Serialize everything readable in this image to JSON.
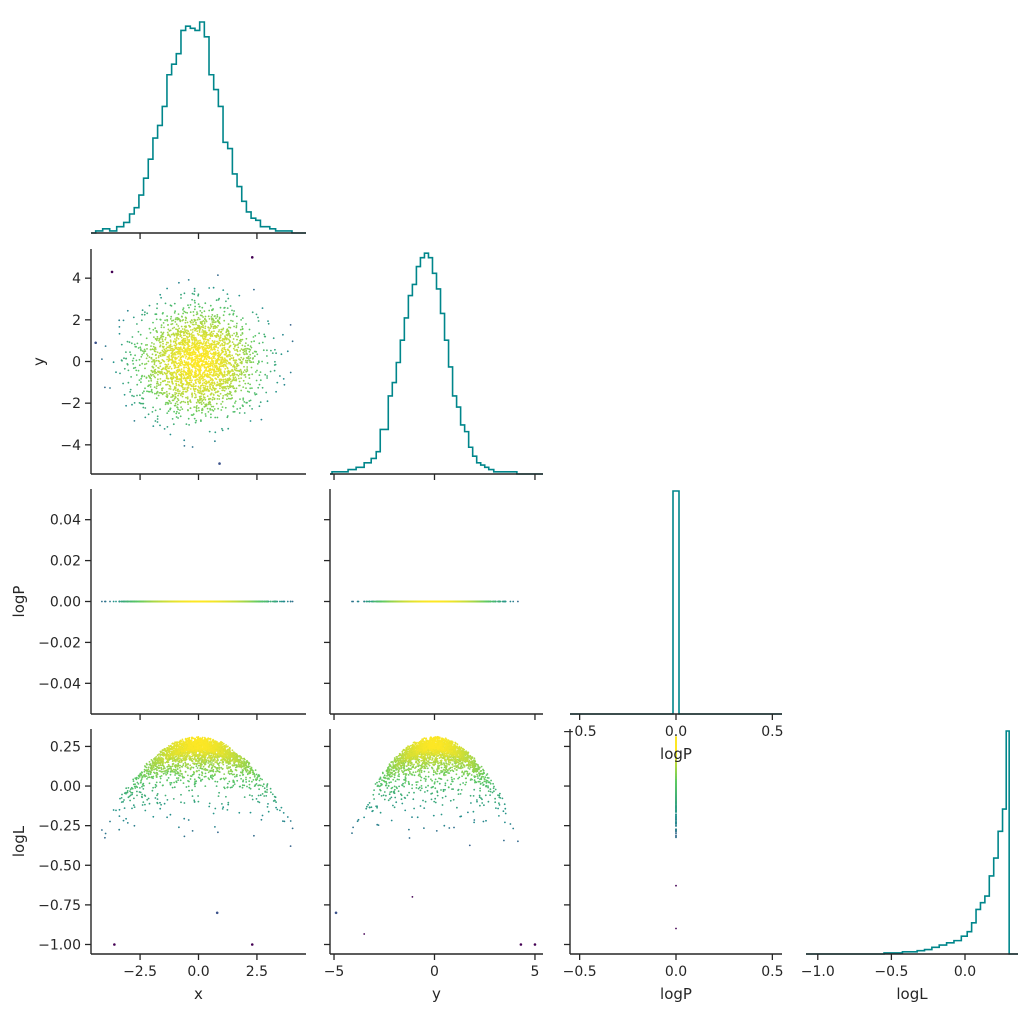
{
  "chart_data": {
    "type": "corner-plot",
    "variables": [
      "x",
      "y",
      "logP",
      "logL"
    ],
    "colors": {
      "histogram": "#00868b",
      "colormap": [
        "#440154",
        "#3b528b",
        "#21908d",
        "#5dc963",
        "#fde725"
      ],
      "axis": "#262626"
    },
    "histograms": [
      {
        "variable": "x",
        "xlim": [
          -4.6,
          4.6
        ],
        "ticks": [
          -2.5,
          0.0,
          2.5
        ],
        "tick_labels": [
          "−2.5",
          "0.0",
          "2.5"
        ],
        "xlabel": "x",
        "bin_centers": [
          -4.25,
          -3.95,
          -3.65,
          -3.35,
          -3.05,
          -2.85,
          -2.65,
          -2.45,
          -2.25,
          -2.05,
          -1.85,
          -1.65,
          -1.45,
          -1.25,
          -1.05,
          -0.85,
          -0.65,
          -0.45,
          -0.25,
          -0.05,
          0.15,
          0.35,
          0.55,
          0.75,
          0.95,
          1.15,
          1.35,
          1.55,
          1.75,
          1.95,
          2.15,
          2.35,
          2.55,
          2.75,
          2.95,
          3.15,
          3.45,
          3.8,
          4.2
        ],
        "relative_counts": [
          0.01,
          0.02,
          0.01,
          0.03,
          0.05,
          0.09,
          0.12,
          0.18,
          0.26,
          0.35,
          0.45,
          0.51,
          0.6,
          0.75,
          0.8,
          0.85,
          0.96,
          0.98,
          0.97,
          0.96,
          1.0,
          0.93,
          0.75,
          0.68,
          0.6,
          0.43,
          0.4,
          0.28,
          0.22,
          0.15,
          0.1,
          0.07,
          0.06,
          0.03,
          0.03,
          0.02,
          0.01,
          0.01,
          0.0
        ]
      },
      {
        "variable": "y",
        "xlim": [
          -5.2,
          5.4
        ],
        "ticks": [
          -5,
          0,
          5
        ],
        "tick_labels": [
          "−5",
          "0",
          "5"
        ],
        "xlabel": "y",
        "bin_centers": [
          -4.9,
          -4.5,
          -4.1,
          -3.7,
          -3.3,
          -3.0,
          -2.8,
          -2.6,
          -2.4,
          -2.2,
          -2.0,
          -1.8,
          -1.6,
          -1.4,
          -1.2,
          -1.0,
          -0.8,
          -0.6,
          -0.4,
          -0.2,
          0.0,
          0.2,
          0.4,
          0.6,
          0.8,
          1.0,
          1.2,
          1.4,
          1.6,
          1.8,
          2.0,
          2.2,
          2.4,
          2.6,
          2.8,
          3.1,
          3.5,
          3.9,
          4.3,
          4.8
        ],
        "relative_counts": [
          0.01,
          0.01,
          0.02,
          0.03,
          0.05,
          0.07,
          0.1,
          0.2,
          0.2,
          0.35,
          0.41,
          0.5,
          0.6,
          0.7,
          0.8,
          0.85,
          0.93,
          0.97,
          0.99,
          0.97,
          0.9,
          0.83,
          0.72,
          0.6,
          0.48,
          0.35,
          0.3,
          0.22,
          0.19,
          0.12,
          0.08,
          0.05,
          0.04,
          0.03,
          0.02,
          0.01,
          0.01,
          0.01,
          0.0,
          0.0
        ]
      },
      {
        "variable": "logP",
        "xlim": [
          -0.55,
          0.55
        ],
        "ticks": [
          -0.5,
          0.0,
          0.5
        ],
        "tick_labels": [
          "−0.5",
          "0.0",
          "0.5"
        ],
        "xlabel": "logP",
        "spike_at": 0.0,
        "relative_count": 1.0
      },
      {
        "variable": "logL",
        "xlim": [
          -1.08,
          0.36
        ],
        "ticks": [
          -1.0,
          -0.5,
          0.0
        ],
        "tick_labels": [
          "−1.0",
          "−0.5",
          "0.0"
        ],
        "xlabel": "logL",
        "bin_centers": [
          -1.0,
          -0.9,
          -0.8,
          -0.7,
          -0.6,
          -0.5,
          -0.45,
          -0.4,
          -0.35,
          -0.3,
          -0.25,
          -0.2,
          -0.15,
          -0.1,
          -0.05,
          0.0,
          0.03,
          0.06,
          0.09,
          0.12,
          0.15,
          0.18,
          0.21,
          0.24,
          0.27,
          0.29
        ],
        "relative_counts": [
          0.0,
          0.0,
          0.0,
          0.0,
          0.0,
          0.005,
          0.005,
          0.01,
          0.01,
          0.015,
          0.02,
          0.03,
          0.04,
          0.05,
          0.06,
          0.08,
          0.1,
          0.14,
          0.2,
          0.23,
          0.26,
          0.35,
          0.43,
          0.55,
          0.65,
          1.0
        ]
      }
    ],
    "scatter_panels": [
      {
        "x_variable": "x",
        "y_variable": "y",
        "xlim": [
          -4.6,
          4.6
        ],
        "ylim": [
          -5.4,
          5.4
        ],
        "y_ticks": [
          4,
          2,
          0,
          -2,
          -4
        ],
        "y_tick_labels": [
          "4",
          "2",
          "0",
          "−2",
          "−4"
        ],
        "ylabel": "y",
        "relation": "independent standard normal cloud, centered at (0, 0), color = logL",
        "outliers": [
          {
            "x": -3.7,
            "y": 4.3,
            "color": "#440154"
          },
          {
            "x": 2.3,
            "y": 5.0,
            "color": "#440154"
          },
          {
            "x": 0.9,
            "y": -4.9,
            "color": "#3b528b"
          },
          {
            "x": -4.4,
            "y": 0.9,
            "color": "#3b528b"
          }
        ]
      },
      {
        "x_variable": "x",
        "y_variable": "logP",
        "xlim": [
          -4.6,
          4.6
        ],
        "ylim": [
          -0.055,
          0.055
        ],
        "y_ticks": [
          0.04,
          0.02,
          0.0,
          -0.02,
          -0.04
        ],
        "y_tick_labels": [
          "0.04",
          "0.02",
          "0.00",
          "−0.02",
          "−0.04"
        ],
        "ylabel": "logP",
        "relation": "all points at logP = 0"
      },
      {
        "x_variable": "y",
        "y_variable": "logP",
        "xlim": [
          -5.2,
          5.4
        ],
        "ylim": [
          -0.055,
          0.055
        ],
        "relation": "all points at logP = 0"
      },
      {
        "x_variable": "x",
        "y_variable": "logL",
        "xlim": [
          -4.6,
          4.6
        ],
        "ylim": [
          -1.06,
          0.36
        ],
        "y_ticks": [
          0.25,
          0.0,
          -0.25,
          -0.5,
          -0.75,
          -1.0
        ],
        "y_tick_labels": [
          "0.25",
          "0.00",
          "−0.25",
          "−0.50",
          "−0.75",
          "−1.00"
        ],
        "ylabel": "logL",
        "relation": "logL ≤ 0.3 − x²/30, dense near the upper parabola",
        "outliers": [
          {
            "x": -3.6,
            "y": -1.0,
            "color": "#440154"
          },
          {
            "x": 2.3,
            "y": -1.0,
            "color": "#440154"
          },
          {
            "x": 0.8,
            "y": -0.8,
            "color": "#3b528b"
          }
        ]
      },
      {
        "x_variable": "y",
        "y_variable": "logL",
        "xlim": [
          -5.2,
          5.4
        ],
        "ylim": [
          -1.06,
          0.36
        ],
        "relation": "logL ≤ 0.3 − y²/30, dense near the upper parabola",
        "outliers": [
          {
            "x": 4.3,
            "y": -1.0,
            "color": "#440154"
          },
          {
            "x": 5.0,
            "y": -1.0,
            "color": "#440154"
          },
          {
            "x": -4.9,
            "y": -0.8,
            "color": "#3b528b"
          }
        ]
      },
      {
        "x_variable": "logP",
        "y_variable": "logL",
        "xlim": [
          -0.55,
          0.55
        ],
        "ylim": [
          -1.06,
          0.36
        ],
        "relation": "vertical line at logP = 0 spanning logL from −1.0 to 0.3"
      }
    ]
  }
}
